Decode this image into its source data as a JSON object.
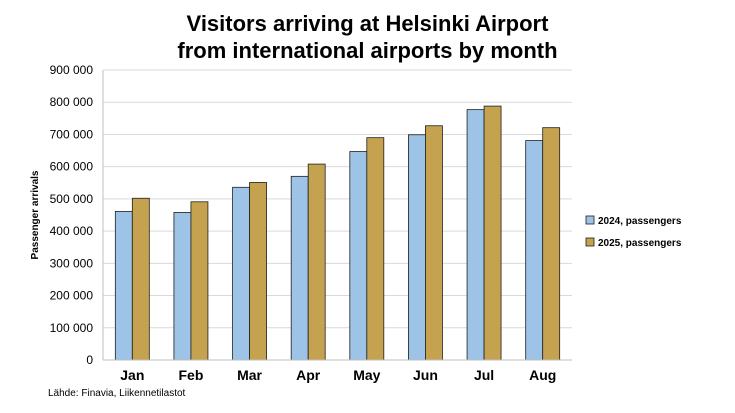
{
  "chart_data": {
    "type": "bar",
    "title_line1": "Visitors arriving at Helsinki Airport",
    "title_line2": "from international airports by month",
    "ylabel": "Passenger arrivals",
    "xlabel": "",
    "categories": [
      "Jan",
      "Feb",
      "Mar",
      "Apr",
      "May",
      "Jun",
      "Jul",
      "Aug"
    ],
    "series": [
      {
        "name": "2024, passengers",
        "color": "#9dc3e6",
        "values": [
          461000,
          458000,
          536000,
          570000,
          647000,
          699000,
          777000,
          681000
        ]
      },
      {
        "name": "2025, passengers",
        "color": "#c5a24f",
        "values": [
          502000,
          491000,
          551000,
          608000,
          690000,
          727000,
          788000,
          721000
        ]
      }
    ],
    "ylim": [
      0,
      900000
    ],
    "yticks": [
      0,
      100000,
      200000,
      300000,
      400000,
      500000,
      600000,
      700000,
      800000,
      900000
    ],
    "ytick_labels": [
      "0",
      "100 000",
      "200 000",
      "300 000",
      "400 000",
      "500 000",
      "600 000",
      "700 000",
      "800 000",
      "900 000"
    ],
    "grid": true,
    "legend_position": "right"
  },
  "source_text": "Lähde: Finavia, Liikennetilastot"
}
